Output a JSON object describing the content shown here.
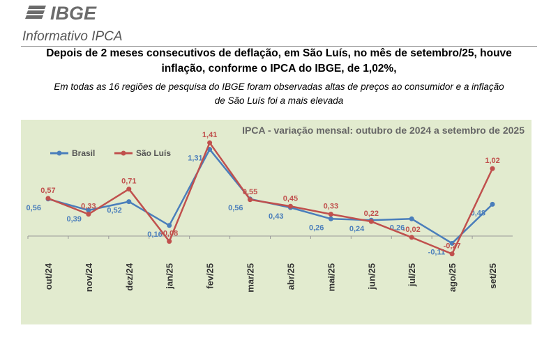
{
  "header": {
    "logo": "IBGE",
    "section": "Informativo IPCA"
  },
  "headline": [
    "Depois de 2 meses consecutivos de deflação, em São Luís, no mês de setembro/25, houve",
    "inflação, conforme o IPCA do IBGE, de 1,02%,"
  ],
  "subtitle": [
    "Em todas as 16 regiões de pesquisa do IBGE foram observadas altas de preços ao consumidor e a inflação",
    "de São Luís foi a mais elevada"
  ],
  "chart_data": {
    "type": "line",
    "title": "IPCA - variação mensal: outubro de 2024 a setembro de 2025",
    "categories": [
      "out/24",
      "nov/24",
      "dez/24",
      "jan/25",
      "fev/25",
      "mar/25",
      "abr/25",
      "mai/25",
      "jun/25",
      "jul/25",
      "ago/25",
      "set/25"
    ],
    "series": [
      {
        "name": "Brasil",
        "color": "#4a7ebb",
        "values": [
          0.56,
          0.39,
          0.52,
          0.16,
          1.31,
          0.56,
          0.43,
          0.26,
          0.24,
          0.26,
          -0.11,
          0.48
        ],
        "value_labels": [
          "0,56",
          "0,39",
          "0,52",
          "0,16",
          "1,31",
          "0,56",
          "0,43",
          "0,26",
          "0,24",
          "0,26",
          "-0,11",
          "0,48"
        ]
      },
      {
        "name": "São Luís",
        "color": "#c0504d",
        "values": [
          0.57,
          0.33,
          0.71,
          -0.08,
          1.41,
          0.55,
          0.45,
          0.33,
          0.22,
          -0.02,
          -0.27,
          1.02
        ],
        "value_labels": [
          "0,57",
          "0,33",
          "0,71",
          "-0,08",
          "1,41",
          "0,55",
          "0,45",
          "0,33",
          "0,22",
          "-0,02",
          "-0,27",
          "1,02"
        ]
      }
    ],
    "ylim": [
      -0.6,
      1.6
    ],
    "legend": "upper-left",
    "background": "#e2ebcf"
  }
}
